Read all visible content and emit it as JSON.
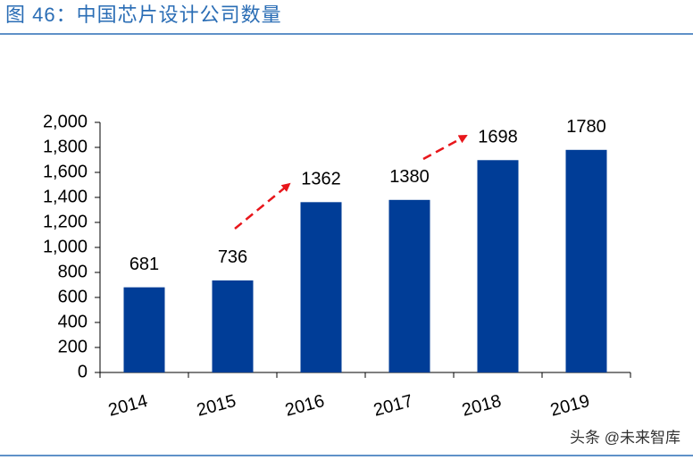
{
  "chart_data": {
    "type": "bar",
    "title": "图 46：中国芯片设计公司数量",
    "categories": [
      "2014",
      "2015",
      "2016",
      "2017",
      "2018",
      "2019"
    ],
    "values": [
      681,
      736,
      1362,
      1380,
      1698,
      1780
    ],
    "color": "#003d97",
    "ylim": [
      0,
      2000
    ],
    "yticks": [
      0,
      200,
      400,
      600,
      800,
      {
        "value": 1000,
        "label": "1,000"
      },
      {
        "value": 1200,
        "label": "1,200"
      },
      {
        "value": 1400,
        "label": "1,400"
      },
      {
        "value": 1600,
        "label": "1,600"
      },
      {
        "value": 1800,
        "label": "1,800"
      },
      {
        "value": 2000,
        "label": "2,000"
      }
    ],
    "grid": false,
    "watermark": "头条 @未来智库"
  }
}
